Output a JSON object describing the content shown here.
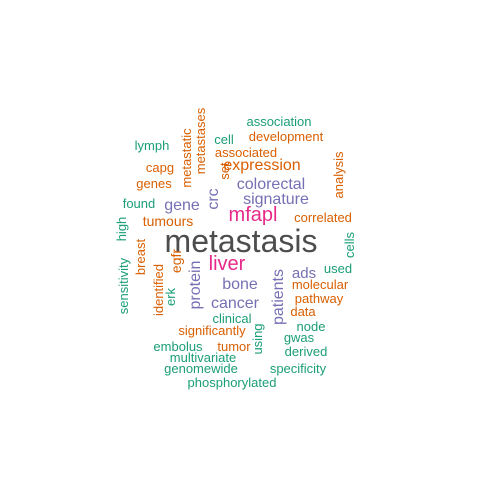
{
  "colors": {
    "dark_gray": "#4d4d4d",
    "magenta": "#e7298a",
    "purple": "#7570b3",
    "orange": "#d95f02",
    "green": "#1b9e77"
  },
  "words": [
    {
      "text": "metastasis",
      "color": "dark_gray"
    },
    {
      "text": "mfapl",
      "color": "magenta"
    },
    {
      "text": "liver",
      "color": "magenta"
    },
    {
      "text": "expression",
      "color": "orange"
    },
    {
      "text": "colorectal",
      "color": "purple"
    },
    {
      "text": "signature",
      "color": "purple"
    },
    {
      "text": "gene",
      "color": "purple"
    },
    {
      "text": "crc",
      "color": "purple"
    },
    {
      "text": "bone",
      "color": "purple"
    },
    {
      "text": "patients",
      "color": "purple"
    },
    {
      "text": "cancer",
      "color": "purple"
    },
    {
      "text": "protein",
      "color": "purple"
    },
    {
      "text": "ads",
      "color": "purple"
    },
    {
      "text": "tumours",
      "color": "orange"
    },
    {
      "text": "correlated",
      "color": "orange"
    },
    {
      "text": "associated",
      "color": "orange"
    },
    {
      "text": "development",
      "color": "orange"
    },
    {
      "text": "metastatic",
      "color": "orange"
    },
    {
      "text": "metastases",
      "color": "orange"
    },
    {
      "text": "set",
      "color": "orange"
    },
    {
      "text": "capg",
      "color": "orange"
    },
    {
      "text": "genes",
      "color": "orange"
    },
    {
      "text": "egfr",
      "color": "orange"
    },
    {
      "text": "breast",
      "color": "orange"
    },
    {
      "text": "identified",
      "color": "orange"
    },
    {
      "text": "molecular",
      "color": "orange"
    },
    {
      "text": "pathway",
      "color": "orange"
    },
    {
      "text": "data",
      "color": "orange"
    },
    {
      "text": "significantly",
      "color": "orange"
    },
    {
      "text": "tumor",
      "color": "orange"
    },
    {
      "text": "analysis",
      "color": "orange"
    },
    {
      "text": "association",
      "color": "green"
    },
    {
      "text": "cell",
      "color": "green"
    },
    {
      "text": "lymph",
      "color": "green"
    },
    {
      "text": "found",
      "color": "green"
    },
    {
      "text": "high",
      "color": "green"
    },
    {
      "text": "sensitivity",
      "color": "green"
    },
    {
      "text": "erk",
      "color": "green"
    },
    {
      "text": "cells",
      "color": "green"
    },
    {
      "text": "used",
      "color": "green"
    },
    {
      "text": "clinical",
      "color": "green"
    },
    {
      "text": "node",
      "color": "green"
    },
    {
      "text": "embolus",
      "color": "green"
    },
    {
      "text": "using",
      "color": "green"
    },
    {
      "text": "gwas",
      "color": "green"
    },
    {
      "text": "multivariate",
      "color": "green"
    },
    {
      "text": "derived",
      "color": "green"
    },
    {
      "text": "genomewide",
      "color": "green"
    },
    {
      "text": "specificity",
      "color": "green"
    },
    {
      "text": "phosphorylated",
      "color": "green"
    }
  ]
}
